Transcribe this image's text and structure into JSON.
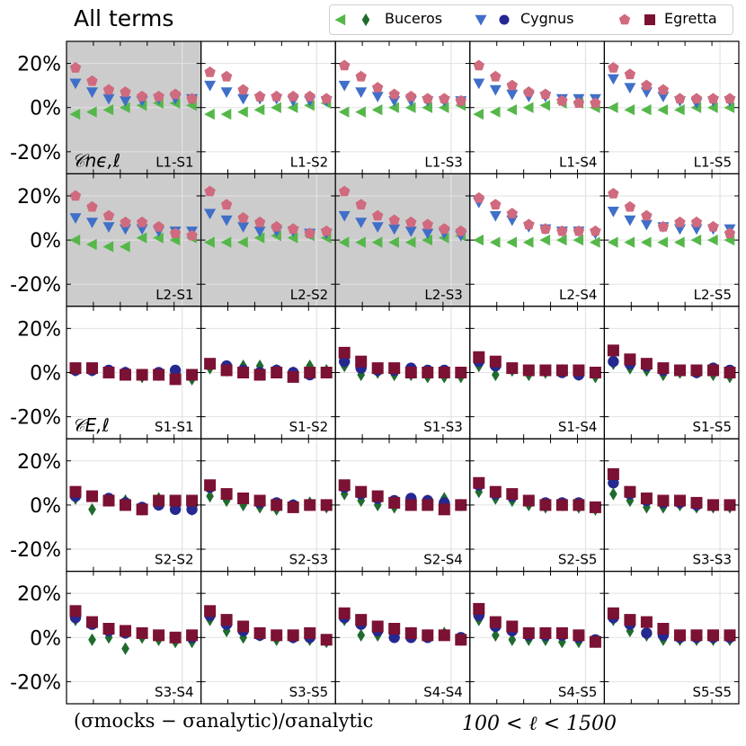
{
  "figure": {
    "title": "All terms",
    "footer_left": "(σmocks − σanalytic)/σanalytic",
    "footer_right": "100 < ℓ < 1500"
  },
  "colors": {
    "buceros_tri": "#55b74a",
    "buceros_dia": "#1f6b2e",
    "cygnus_tri": "#3f6fc8",
    "cygnus_dot": "#25288f",
    "egretta_pent": "#d06a7e",
    "egretta_sq": "#7b1133",
    "shade": "#cccccc",
    "grid": "#e2e2e2"
  },
  "legend": [
    {
      "name": "Buceros",
      "icon1": "left-triangle-icon",
      "icon2": "diamond-icon",
      "color1": "#55b74a",
      "color2": "#1f6b2e"
    },
    {
      "name": "Cygnus",
      "icon1": "down-triangle-icon",
      "icon2": "circle-icon",
      "color1": "#3f6fc8",
      "color2": "#25288f"
    },
    {
      "name": "Egretta",
      "icon1": "pentagon-icon",
      "icon2": "square-icon",
      "color1": "#d06a7e",
      "color2": "#7b1133"
    }
  ],
  "chart_data": {
    "type": "scatter",
    "grid_rows": 5,
    "grid_cols": 5,
    "ylim": [
      -30,
      30
    ],
    "yticks": [
      "20%",
      "0%",
      "-20%"
    ],
    "ytick_values": [
      20,
      0,
      -20
    ],
    "row_labels": [
      "𝒞nϵ,ℓ",
      "",
      "𝒞E,ℓ",
      "",
      ""
    ],
    "series_names": [
      "Buceros",
      "Cygnus",
      "Egretta"
    ],
    "panels": [
      {
        "label": "L1-S1",
        "shaded": true,
        "kind": "ne",
        "series": [
          [
            -3,
            -2,
            -1,
            0,
            1,
            2,
            2,
            1
          ],
          [
            11,
            7,
            4,
            3,
            3,
            4,
            4,
            4
          ],
          [
            18,
            12,
            8,
            7,
            5,
            5,
            6,
            4
          ]
        ]
      },
      {
        "label": "L1-S2",
        "shaded": false,
        "kind": "ne",
        "series": [
          [
            -3,
            -3,
            -2,
            -1,
            0,
            0,
            1,
            2
          ],
          [
            10,
            7,
            4,
            4,
            4,
            3,
            3,
            3
          ],
          [
            16,
            14,
            8,
            5,
            5,
            5,
            5,
            4
          ]
        ]
      },
      {
        "label": "L1-S3",
        "shaded": false,
        "kind": "ne",
        "series": [
          [
            -2,
            -2,
            -1,
            0,
            0,
            0,
            0,
            1
          ],
          [
            10,
            7,
            5,
            3,
            3,
            3,
            3,
            3
          ],
          [
            19,
            14,
            9,
            6,
            5,
            4,
            4,
            3
          ]
        ]
      },
      {
        "label": "L1-S4",
        "shaded": false,
        "kind": "ne",
        "series": [
          [
            -3,
            -2,
            -1,
            0,
            1,
            2,
            2,
            0
          ],
          [
            11,
            8,
            6,
            5,
            5,
            4,
            4,
            4
          ],
          [
            19,
            14,
            10,
            7,
            6,
            3,
            2,
            2
          ]
        ]
      },
      {
        "label": "L1-S5",
        "shaded": false,
        "kind": "ne",
        "series": [
          [
            0,
            -1,
            -1,
            -1,
            -1,
            0,
            0,
            0
          ],
          [
            13,
            9,
            7,
            5,
            3,
            2,
            3,
            3
          ],
          [
            18,
            15,
            10,
            8,
            4,
            4,
            4,
            4
          ]
        ]
      },
      {
        "label": "L2-S1",
        "shaded": true,
        "kind": "ne",
        "series": [
          [
            0,
            -2,
            -3,
            -3,
            1,
            1,
            0,
            1
          ],
          [
            10,
            8,
            6,
            5,
            5,
            4,
            4,
            4
          ],
          [
            20,
            15,
            11,
            8,
            8,
            6,
            3,
            2
          ]
        ]
      },
      {
        "label": "L2-S2",
        "shaded": true,
        "kind": "ne",
        "series": [
          [
            -1,
            -1,
            -1,
            1,
            2,
            1,
            2,
            1
          ],
          [
            12,
            9,
            6,
            4,
            4,
            4,
            3,
            3
          ],
          [
            22,
            16,
            10,
            8,
            6,
            5,
            3,
            4
          ]
        ]
      },
      {
        "label": "L2-S3",
        "shaded": true,
        "kind": "ne",
        "series": [
          [
            -1,
            -1,
            -1,
            -1,
            -1,
            0,
            1,
            2
          ],
          [
            11,
            8,
            6,
            5,
            4,
            3,
            3,
            2
          ],
          [
            22,
            16,
            11,
            9,
            8,
            7,
            5,
            4
          ]
        ]
      },
      {
        "label": "L2-S4",
        "shaded": false,
        "kind": "ne",
        "series": [
          [
            0,
            -1,
            -1,
            -1,
            0,
            0,
            0,
            -1
          ],
          [
            17,
            11,
            9,
            6,
            5,
            4,
            4,
            3
          ],
          [
            19,
            16,
            12,
            7,
            5,
            4,
            4,
            4
          ]
        ]
      },
      {
        "label": "L2-S5",
        "shaded": false,
        "kind": "ne",
        "series": [
          [
            -1,
            -1,
            -1,
            -1,
            -1,
            0,
            0,
            0
          ],
          [
            13,
            9,
            7,
            6,
            5,
            5,
            5,
            5
          ],
          [
            21,
            15,
            11,
            6,
            8,
            8,
            6,
            3
          ]
        ]
      },
      {
        "label": "S1-S1",
        "shaded": false,
        "kind": "E",
        "series": [
          [
            1,
            1,
            0,
            0,
            -2,
            -1,
            -2,
            -3
          ],
          [
            1,
            1,
            1,
            0,
            -1,
            0,
            1,
            -1
          ],
          [
            2,
            2,
            0,
            -1,
            -1,
            -1,
            -3,
            -1
          ]
        ]
      },
      {
        "label": "S1-S2",
        "shaded": false,
        "kind": "E",
        "series": [
          [
            2,
            1,
            3,
            3,
            1,
            0,
            3,
            1
          ],
          [
            4,
            3,
            1,
            0,
            1,
            0,
            -1,
            0
          ],
          [
            4,
            1,
            0,
            -1,
            0,
            -2,
            0,
            0
          ]
        ]
      },
      {
        "label": "S1-S3",
        "shaded": false,
        "kind": "E",
        "series": [
          [
            3,
            -1,
            0,
            -1,
            -1,
            -2,
            -2,
            -2
          ],
          [
            5,
            2,
            1,
            1,
            2,
            1,
            1,
            0
          ],
          [
            9,
            5,
            2,
            2,
            0,
            0,
            0,
            0
          ]
        ]
      },
      {
        "label": "S1-S4",
        "shaded": false,
        "kind": "E",
        "series": [
          [
            3,
            -1,
            1,
            -1,
            0,
            1,
            -1,
            -2
          ],
          [
            5,
            3,
            2,
            1,
            1,
            0,
            -1,
            0
          ],
          [
            7,
            5,
            2,
            1,
            1,
            1,
            1,
            0
          ]
        ]
      },
      {
        "label": "S1-S5",
        "shaded": false,
        "kind": "E",
        "series": [
          [
            4,
            2,
            1,
            -1,
            0,
            0,
            -1,
            -2
          ],
          [
            5,
            4,
            3,
            1,
            1,
            0,
            2,
            1
          ],
          [
            10,
            6,
            4,
            2,
            1,
            1,
            1,
            0
          ]
        ]
      },
      {
        "label": "S2-S2",
        "shaded": false,
        "kind": "E",
        "series": [
          [
            3,
            -2,
            2,
            2,
            -2,
            3,
            -1,
            -2
          ],
          [
            4,
            4,
            3,
            1,
            -1,
            0,
            -2,
            -2
          ],
          [
            6,
            4,
            2,
            0,
            -2,
            2,
            2,
            2
          ]
        ]
      },
      {
        "label": "S2-S3",
        "shaded": false,
        "kind": "E",
        "series": [
          [
            4,
            2,
            0,
            -1,
            -2,
            0,
            1,
            -1
          ],
          [
            8,
            5,
            3,
            1,
            1,
            0,
            0,
            0
          ],
          [
            9,
            5,
            3,
            2,
            0,
            -1,
            0,
            0
          ]
        ]
      },
      {
        "label": "S2-S4",
        "shaded": false,
        "kind": "E",
        "series": [
          [
            5,
            2,
            0,
            -1,
            2,
            2,
            3,
            0
          ],
          [
            8,
            5,
            3,
            2,
            3,
            2,
            1,
            0
          ],
          [
            9,
            6,
            4,
            1,
            0,
            0,
            -2,
            0
          ]
        ]
      },
      {
        "label": "S2-S5",
        "shaded": false,
        "kind": "E",
        "series": [
          [
            6,
            3,
            2,
            0,
            -1,
            0,
            -1,
            -2
          ],
          [
            9,
            5,
            4,
            2,
            1,
            1,
            1,
            -1
          ],
          [
            10,
            6,
            5,
            2,
            0,
            0,
            0,
            -1
          ]
        ]
      },
      {
        "label": "S3-S3",
        "shaded": false,
        "kind": "E",
        "series": [
          [
            5,
            2,
            -1,
            -1,
            0,
            -1,
            -1,
            -1
          ],
          [
            10,
            5,
            2,
            1,
            1,
            0,
            0,
            0
          ],
          [
            14,
            6,
            3,
            2,
            2,
            1,
            0,
            0
          ]
        ]
      },
      {
        "label": "S3-S4",
        "shaded": false,
        "kind": "E",
        "series": [
          [
            8,
            -1,
            0,
            -5,
            0,
            -1,
            -2,
            -2
          ],
          [
            9,
            6,
            3,
            2,
            2,
            1,
            0,
            0
          ],
          [
            12,
            7,
            4,
            3,
            2,
            1,
            0,
            1
          ]
        ]
      },
      {
        "label": "S3-S5",
        "shaded": false,
        "kind": "E",
        "series": [
          [
            8,
            3,
            0,
            1,
            -1,
            0,
            -1,
            -2
          ],
          [
            10,
            6,
            3,
            1,
            1,
            0,
            0,
            -1
          ],
          [
            12,
            8,
            5,
            2,
            1,
            1,
            2,
            -1
          ]
        ]
      },
      {
        "label": "S4-S4",
        "shaded": false,
        "kind": "E",
        "series": [
          [
            8,
            1,
            1,
            2,
            2,
            1,
            2,
            -1
          ],
          [
            9,
            6,
            3,
            0,
            0,
            0,
            1,
            0
          ],
          [
            11,
            8,
            5,
            4,
            2,
            1,
            1,
            -1
          ]
        ]
      },
      {
        "label": "S4-S5",
        "shaded": false,
        "kind": "E",
        "series": [
          [
            8,
            1,
            -1,
            -1,
            -1,
            -2,
            -2,
            -2
          ],
          [
            10,
            5,
            3,
            1,
            1,
            1,
            0,
            -1
          ],
          [
            13,
            7,
            5,
            2,
            2,
            2,
            1,
            -2
          ]
        ]
      },
      {
        "label": "S5-S5",
        "shaded": false,
        "kind": "E",
        "series": [
          [
            8,
            3,
            1,
            -1,
            -1,
            -1,
            -1,
            -1
          ],
          [
            9,
            6,
            2,
            1,
            0,
            0,
            0,
            0
          ],
          [
            11,
            8,
            7,
            4,
            1,
            1,
            1,
            1
          ]
        ]
      }
    ]
  }
}
